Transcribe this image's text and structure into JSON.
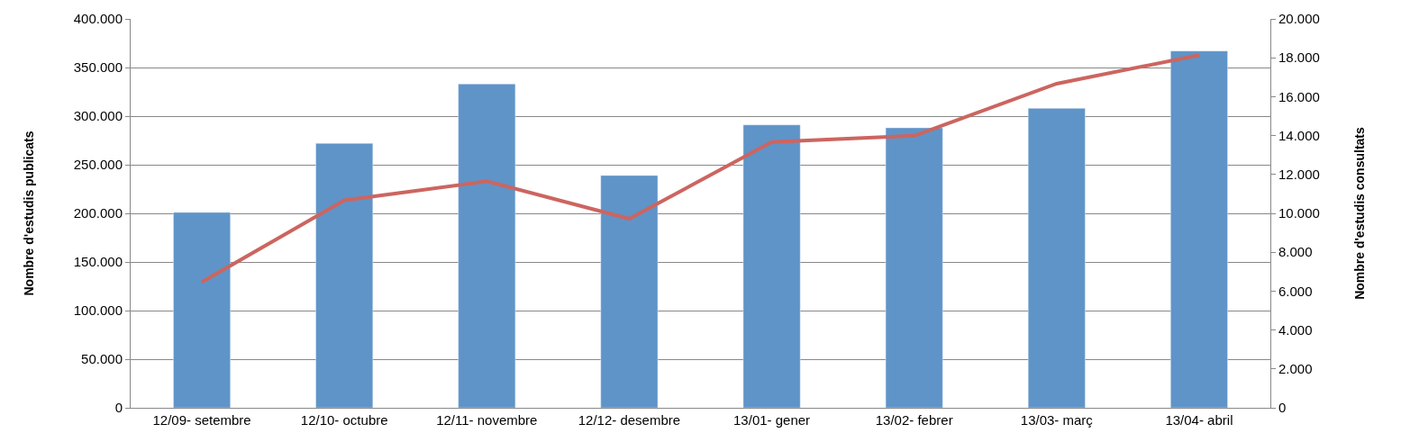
{
  "chart_data": {
    "type": "bar",
    "categories": [
      "12/09- setembre",
      "12/10- octubre",
      "12/11- novembre",
      "12/12- desembre",
      "13/01- gener",
      "13/02- febrer",
      "13/03- març",
      "13/04- abril"
    ],
    "ylabel": "Nombre d'estudis publicats",
    "y2label": "Nombre d'estudis consultats",
    "series": [
      {
        "color": "#5f94c8",
        "values": [
          201000,
          272000,
          333000,
          239000,
          291000,
          288000,
          308000,
          367000
        ]
      },
      {
        "type": "line",
        "axis": "y2",
        "color": "#cc6560",
        "marker": "none",
        "line_style": "solid",
        "values": [
          6470,
          10670,
          11650,
          9720,
          13670,
          13990,
          16670,
          18140
        ]
      }
    ],
    "ylim": [
      0,
      400000
    ],
    "yticks": [
      {
        "value": 0,
        "label": "0"
      },
      {
        "value": 50000,
        "label": "50.000"
      },
      {
        "value": 100000,
        "label": "100.000"
      },
      {
        "value": 150000,
        "label": "150.000"
      },
      {
        "value": 200000,
        "label": "200.000"
      },
      {
        "value": 250000,
        "label": "250.000"
      },
      {
        "value": 300000,
        "label": "300.000"
      },
      {
        "value": 350000,
        "label": "350.000"
      },
      {
        "value": 400000,
        "label": "400.000"
      }
    ],
    "y2lim": [
      0,
      20000
    ],
    "y2ticks": [
      {
        "value": 0,
        "label": "0"
      },
      {
        "value": 2000,
        "label": "2.000"
      },
      {
        "value": 4000,
        "label": "4.000"
      },
      {
        "value": 6000,
        "label": "6.000"
      },
      {
        "value": 8000,
        "label": "8.000"
      },
      {
        "value": 10000,
        "label": "10.000"
      },
      {
        "value": 12000,
        "label": "12.000"
      },
      {
        "value": 14000,
        "label": "14.000"
      },
      {
        "value": 16000,
        "label": "16.000"
      },
      {
        "value": 18000,
        "label": "18.000"
      },
      {
        "value": 20000,
        "label": "20.000"
      }
    ],
    "grid": "y"
  }
}
